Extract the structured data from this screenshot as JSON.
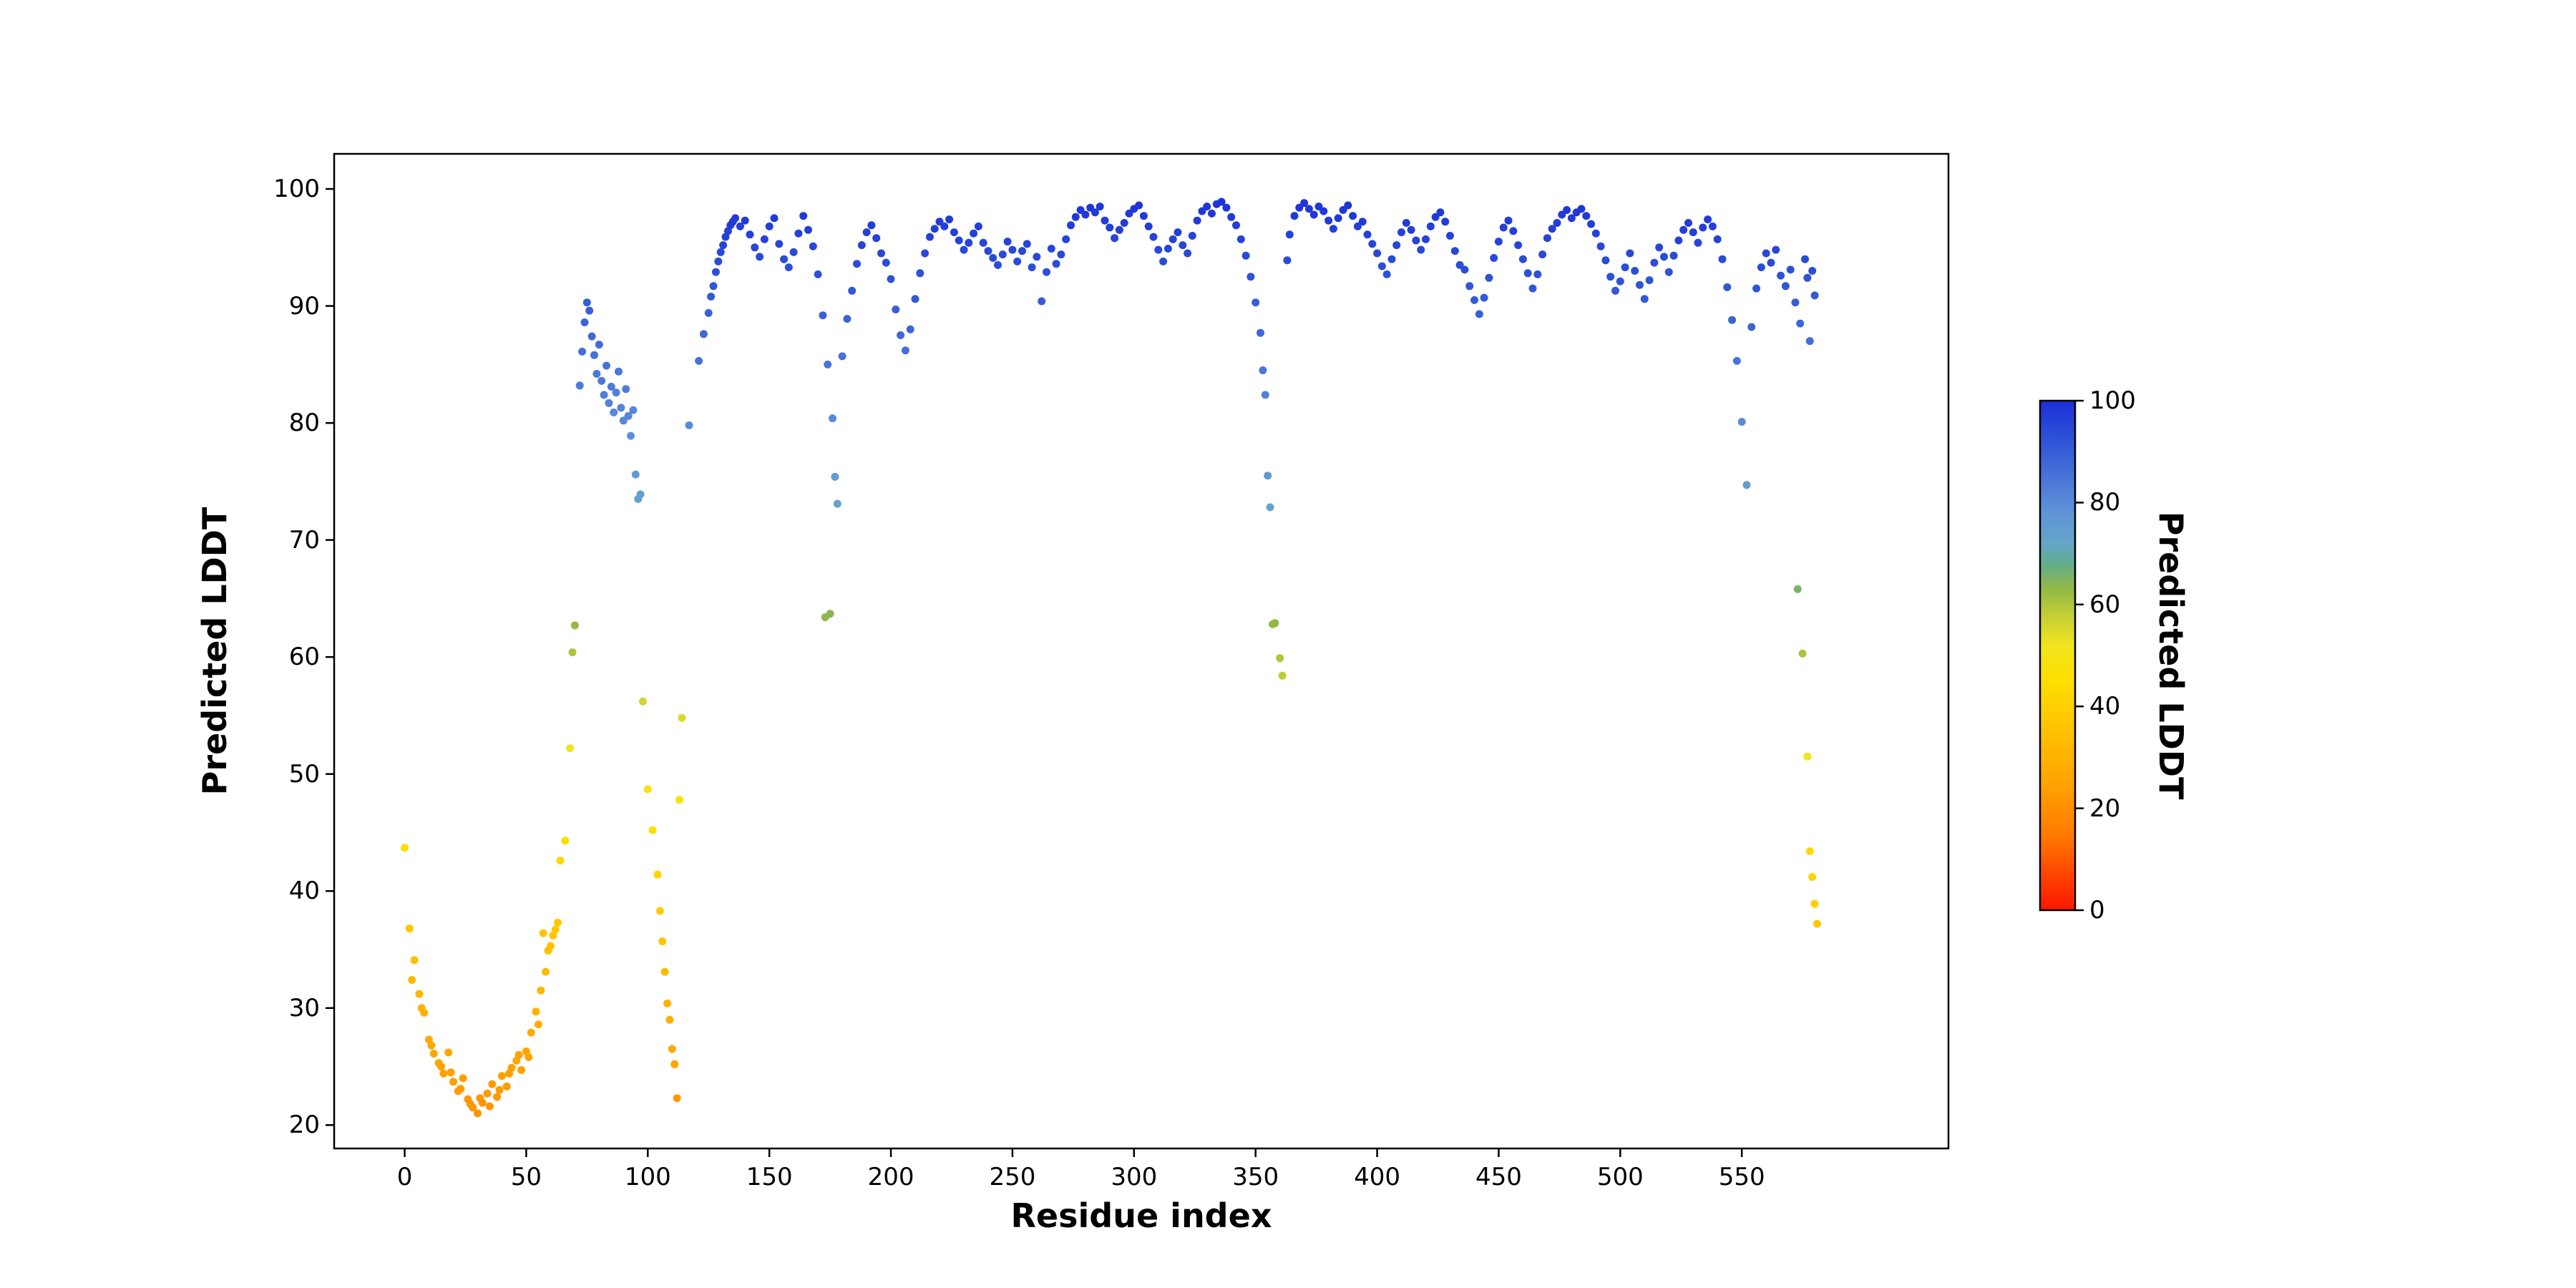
{
  "figure": {
    "background": "#ffffff",
    "text_color": "#000000",
    "spine_color": "#000000"
  },
  "chart_data": {
    "type": "scatter",
    "title": "",
    "xlabel": "Residue index",
    "ylabel": "Predicted LDDT",
    "xlim": [
      -29,
      635
    ],
    "ylim": [
      18,
      103
    ],
    "xticks": [
      0,
      50,
      100,
      150,
      200,
      250,
      300,
      350,
      400,
      450,
      500,
      550
    ],
    "yticks": [
      20,
      30,
      40,
      50,
      60,
      70,
      80,
      90,
      100
    ],
    "grid": false,
    "legend": "none",
    "marker_diameter_px": 11,
    "colorbar": {
      "label": "Predicted LDDT",
      "ticks": [
        0,
        20,
        40,
        60,
        80,
        100
      ],
      "vmin": 0,
      "vmax": 100,
      "stops": [
        [
          0,
          "#ff1500"
        ],
        [
          15,
          "#ff7b00"
        ],
        [
          25,
          "#ffa300"
        ],
        [
          35,
          "#ffc100"
        ],
        [
          45,
          "#ffdf00"
        ],
        [
          52,
          "#f0e41e"
        ],
        [
          58,
          "#c2ce36"
        ],
        [
          63,
          "#92b845"
        ],
        [
          68,
          "#63ad8c"
        ],
        [
          72,
          "#64a5c8"
        ],
        [
          78,
          "#5f93d8"
        ],
        [
          85,
          "#4a73d8"
        ],
        [
          92,
          "#2f54d8"
        ],
        [
          100,
          "#1c2fd8"
        ]
      ]
    },
    "points": [
      [
        0,
        43.7
      ],
      [
        2,
        36.8
      ],
      [
        3,
        32.4
      ],
      [
        4,
        34.1
      ],
      [
        6,
        31.2
      ],
      [
        7,
        30.0
      ],
      [
        8,
        29.6
      ],
      [
        10,
        27.3
      ],
      [
        11,
        26.8
      ],
      [
        12,
        26.1
      ],
      [
        14,
        25.3
      ],
      [
        15,
        25.0
      ],
      [
        16,
        24.4
      ],
      [
        18,
        26.2
      ],
      [
        19,
        24.5
      ],
      [
        20,
        23.7
      ],
      [
        22,
        22.9
      ],
      [
        23,
        23.1
      ],
      [
        24,
        24.0
      ],
      [
        26,
        22.2
      ],
      [
        27,
        21.8
      ],
      [
        28,
        21.5
      ],
      [
        30,
        21.0
      ],
      [
        31,
        22.3
      ],
      [
        32,
        21.9
      ],
      [
        34,
        22.7
      ],
      [
        35,
        21.6
      ],
      [
        36,
        23.5
      ],
      [
        38,
        22.4
      ],
      [
        39,
        23.0
      ],
      [
        40,
        24.2
      ],
      [
        42,
        23.3
      ],
      [
        43,
        24.4
      ],
      [
        44,
        24.9
      ],
      [
        46,
        25.5
      ],
      [
        47,
        26.0
      ],
      [
        48,
        24.7
      ],
      [
        50,
        26.3
      ],
      [
        51,
        25.8
      ],
      [
        52,
        27.9
      ],
      [
        54,
        29.7
      ],
      [
        55,
        28.6
      ],
      [
        56,
        31.5
      ],
      [
        57,
        36.4
      ],
      [
        58,
        33.1
      ],
      [
        59,
        34.9
      ],
      [
        60,
        35.3
      ],
      [
        61,
        36.2
      ],
      [
        62,
        36.7
      ],
      [
        63,
        37.3
      ],
      [
        64,
        42.6
      ],
      [
        66,
        44.3
      ],
      [
        68,
        52.2
      ],
      [
        69,
        60.4
      ],
      [
        70,
        62.7
      ],
      [
        72,
        83.2
      ],
      [
        73,
        86.1
      ],
      [
        74,
        88.6
      ],
      [
        75,
        90.3
      ],
      [
        76,
        89.6
      ],
      [
        77,
        87.4
      ],
      [
        78,
        85.8
      ],
      [
        79,
        84.2
      ],
      [
        80,
        86.7
      ],
      [
        81,
        83.6
      ],
      [
        82,
        82.4
      ],
      [
        83,
        84.9
      ],
      [
        84,
        81.7
      ],
      [
        85,
        83.1
      ],
      [
        86,
        80.9
      ],
      [
        87,
        82.6
      ],
      [
        88,
        84.4
      ],
      [
        89,
        81.3
      ],
      [
        90,
        80.2
      ],
      [
        91,
        82.9
      ],
      [
        92,
        80.6
      ],
      [
        93,
        78.9
      ],
      [
        94,
        81.1
      ],
      [
        95,
        75.6
      ],
      [
        96,
        73.5
      ],
      [
        97,
        73.9
      ],
      [
        98,
        56.2
      ],
      [
        100,
        48.7
      ],
      [
        102,
        45.2
      ],
      [
        104,
        41.4
      ],
      [
        105,
        38.3
      ],
      [
        106,
        35.7
      ],
      [
        107,
        33.1
      ],
      [
        108,
        30.4
      ],
      [
        109,
        29.0
      ],
      [
        110,
        26.5
      ],
      [
        111,
        25.2
      ],
      [
        112,
        22.3
      ],
      [
        113,
        47.8
      ],
      [
        114,
        54.8
      ],
      [
        117,
        79.8
      ],
      [
        121,
        85.3
      ],
      [
        123,
        87.6
      ],
      [
        125,
        89.4
      ],
      [
        126,
        90.8
      ],
      [
        127,
        91.7
      ],
      [
        128,
        92.9
      ],
      [
        129,
        93.8
      ],
      [
        130,
        94.6
      ],
      [
        131,
        95.2
      ],
      [
        132,
        95.9
      ],
      [
        133,
        96.4
      ],
      [
        134,
        96.9
      ],
      [
        135,
        97.2
      ],
      [
        136,
        97.5
      ],
      [
        138,
        96.8
      ],
      [
        140,
        97.3
      ],
      [
        142,
        96.1
      ],
      [
        144,
        95.0
      ],
      [
        146,
        94.2
      ],
      [
        148,
        95.7
      ],
      [
        150,
        96.8
      ],
      [
        152,
        97.5
      ],
      [
        154,
        95.3
      ],
      [
        156,
        94.0
      ],
      [
        158,
        93.3
      ],
      [
        160,
        94.6
      ],
      [
        162,
        96.2
      ],
      [
        164,
        97.7
      ],
      [
        166,
        96.5
      ],
      [
        168,
        95.1
      ],
      [
        170,
        92.7
      ],
      [
        172,
        89.2
      ],
      [
        173,
        63.4
      ],
      [
        174,
        85.0
      ],
      [
        175,
        63.7
      ],
      [
        176,
        80.4
      ],
      [
        177,
        75.4
      ],
      [
        178,
        73.1
      ],
      [
        180,
        85.7
      ],
      [
        182,
        88.9
      ],
      [
        184,
        91.3
      ],
      [
        186,
        93.6
      ],
      [
        188,
        95.2
      ],
      [
        190,
        96.3
      ],
      [
        192,
        96.9
      ],
      [
        194,
        95.8
      ],
      [
        196,
        94.5
      ],
      [
        198,
        93.7
      ],
      [
        200,
        92.3
      ],
      [
        202,
        89.7
      ],
      [
        204,
        87.5
      ],
      [
        206,
        86.2
      ],
      [
        208,
        88.0
      ],
      [
        210,
        90.6
      ],
      [
        212,
        92.8
      ],
      [
        214,
        94.5
      ],
      [
        216,
        95.9
      ],
      [
        218,
        96.6
      ],
      [
        220,
        97.2
      ],
      [
        222,
        96.8
      ],
      [
        224,
        97.4
      ],
      [
        226,
        96.3
      ],
      [
        228,
        95.6
      ],
      [
        230,
        94.8
      ],
      [
        232,
        95.4
      ],
      [
        234,
        96.2
      ],
      [
        236,
        96.8
      ],
      [
        238,
        95.4
      ],
      [
        240,
        94.7
      ],
      [
        242,
        94.1
      ],
      [
        244,
        93.5
      ],
      [
        246,
        94.4
      ],
      [
        248,
        95.5
      ],
      [
        250,
        94.8
      ],
      [
        252,
        93.8
      ],
      [
        254,
        94.7
      ],
      [
        256,
        95.3
      ],
      [
        258,
        93.3
      ],
      [
        260,
        94.2
      ],
      [
        262,
        90.4
      ],
      [
        264,
        92.9
      ],
      [
        266,
        94.9
      ],
      [
        268,
        93.6
      ],
      [
        270,
        94.4
      ],
      [
        272,
        95.7
      ],
      [
        274,
        96.9
      ],
      [
        276,
        97.6
      ],
      [
        278,
        98.2
      ],
      [
        280,
        97.8
      ],
      [
        282,
        98.4
      ],
      [
        284,
        98.0
      ],
      [
        286,
        98.5
      ],
      [
        288,
        97.3
      ],
      [
        290,
        96.7
      ],
      [
        292,
        95.8
      ],
      [
        294,
        96.5
      ],
      [
        296,
        97.1
      ],
      [
        298,
        97.9
      ],
      [
        300,
        98.3
      ],
      [
        302,
        98.6
      ],
      [
        304,
        97.7
      ],
      [
        306,
        96.8
      ],
      [
        308,
        95.9
      ],
      [
        310,
        94.8
      ],
      [
        312,
        93.8
      ],
      [
        314,
        94.9
      ],
      [
        316,
        95.7
      ],
      [
        318,
        96.3
      ],
      [
        320,
        95.2
      ],
      [
        322,
        94.5
      ],
      [
        324,
        96.0
      ],
      [
        326,
        97.3
      ],
      [
        328,
        98.1
      ],
      [
        330,
        98.5
      ],
      [
        332,
        97.9
      ],
      [
        334,
        98.7
      ],
      [
        336,
        98.9
      ],
      [
        338,
        98.4
      ],
      [
        340,
        97.6
      ],
      [
        342,
        96.9
      ],
      [
        344,
        95.7
      ],
      [
        346,
        94.3
      ],
      [
        348,
        92.5
      ],
      [
        350,
        90.3
      ],
      [
        352,
        87.7
      ],
      [
        353,
        84.5
      ],
      [
        354,
        82.4
      ],
      [
        355,
        75.5
      ],
      [
        356,
        72.8
      ],
      [
        357,
        62.8
      ],
      [
        358,
        62.9
      ],
      [
        360,
        59.9
      ],
      [
        361,
        58.4
      ],
      [
        363,
        93.9
      ],
      [
        364,
        96.1
      ],
      [
        366,
        97.7
      ],
      [
        368,
        98.4
      ],
      [
        370,
        98.8
      ],
      [
        372,
        98.3
      ],
      [
        374,
        97.8
      ],
      [
        376,
        98.5
      ],
      [
        378,
        98.1
      ],
      [
        380,
        97.3
      ],
      [
        382,
        96.6
      ],
      [
        384,
        97.5
      ],
      [
        386,
        98.2
      ],
      [
        388,
        98.6
      ],
      [
        390,
        97.7
      ],
      [
        392,
        96.8
      ],
      [
        394,
        97.2
      ],
      [
        396,
        96.1
      ],
      [
        398,
        95.3
      ],
      [
        400,
        94.5
      ],
      [
        402,
        93.4
      ],
      [
        404,
        92.7
      ],
      [
        406,
        94.0
      ],
      [
        408,
        95.2
      ],
      [
        410,
        96.3
      ],
      [
        412,
        97.1
      ],
      [
        414,
        96.5
      ],
      [
        416,
        95.6
      ],
      [
        418,
        94.8
      ],
      [
        420,
        95.7
      ],
      [
        422,
        96.8
      ],
      [
        424,
        97.6
      ],
      [
        426,
        98.0
      ],
      [
        428,
        97.2
      ],
      [
        430,
        96.0
      ],
      [
        432,
        94.7
      ],
      [
        434,
        93.5
      ],
      [
        436,
        93.1
      ],
      [
        438,
        91.7
      ],
      [
        440,
        90.5
      ],
      [
        442,
        89.3
      ],
      [
        444,
        90.7
      ],
      [
        446,
        92.4
      ],
      [
        448,
        94.1
      ],
      [
        450,
        95.5
      ],
      [
        452,
        96.7
      ],
      [
        454,
        97.3
      ],
      [
        456,
        96.4
      ],
      [
        458,
        95.2
      ],
      [
        460,
        94.0
      ],
      [
        462,
        92.8
      ],
      [
        464,
        91.5
      ],
      [
        466,
        92.7
      ],
      [
        468,
        94.4
      ],
      [
        470,
        95.8
      ],
      [
        472,
        96.6
      ],
      [
        474,
        97.1
      ],
      [
        476,
        97.8
      ],
      [
        478,
        98.2
      ],
      [
        480,
        97.5
      ],
      [
        482,
        98.0
      ],
      [
        484,
        98.3
      ],
      [
        486,
        97.7
      ],
      [
        488,
        97.0
      ],
      [
        490,
        96.2
      ],
      [
        492,
        95.1
      ],
      [
        494,
        93.9
      ],
      [
        496,
        92.5
      ],
      [
        498,
        91.3
      ],
      [
        500,
        92.1
      ],
      [
        502,
        93.3
      ],
      [
        504,
        94.5
      ],
      [
        506,
        93.0
      ],
      [
        508,
        91.8
      ],
      [
        510,
        90.6
      ],
      [
        512,
        92.2
      ],
      [
        514,
        93.7
      ],
      [
        516,
        95.0
      ],
      [
        518,
        94.2
      ],
      [
        520,
        92.9
      ],
      [
        522,
        94.3
      ],
      [
        524,
        95.6
      ],
      [
        526,
        96.5
      ],
      [
        528,
        97.1
      ],
      [
        530,
        96.3
      ],
      [
        532,
        95.4
      ],
      [
        534,
        96.7
      ],
      [
        536,
        97.4
      ],
      [
        538,
        96.8
      ],
      [
        540,
        95.7
      ],
      [
        542,
        94.0
      ],
      [
        544,
        91.6
      ],
      [
        546,
        88.8
      ],
      [
        548,
        85.3
      ],
      [
        550,
        80.1
      ],
      [
        552,
        74.7
      ],
      [
        554,
        88.2
      ],
      [
        556,
        91.5
      ],
      [
        558,
        93.3
      ],
      [
        560,
        94.5
      ],
      [
        562,
        93.7
      ],
      [
        564,
        94.8
      ],
      [
        566,
        92.6
      ],
      [
        568,
        91.7
      ],
      [
        570,
        93.1
      ],
      [
        572,
        90.3
      ],
      [
        573,
        65.8
      ],
      [
        574,
        88.5
      ],
      [
        575,
        60.3
      ],
      [
        576,
        94.0
      ],
      [
        577,
        92.4
      ],
      [
        577,
        51.5
      ],
      [
        578,
        87.0
      ],
      [
        578,
        43.4
      ],
      [
        579,
        93.0
      ],
      [
        579,
        41.2
      ],
      [
        580,
        90.9
      ],
      [
        580,
        38.9
      ],
      [
        581,
        37.2
      ]
    ]
  }
}
